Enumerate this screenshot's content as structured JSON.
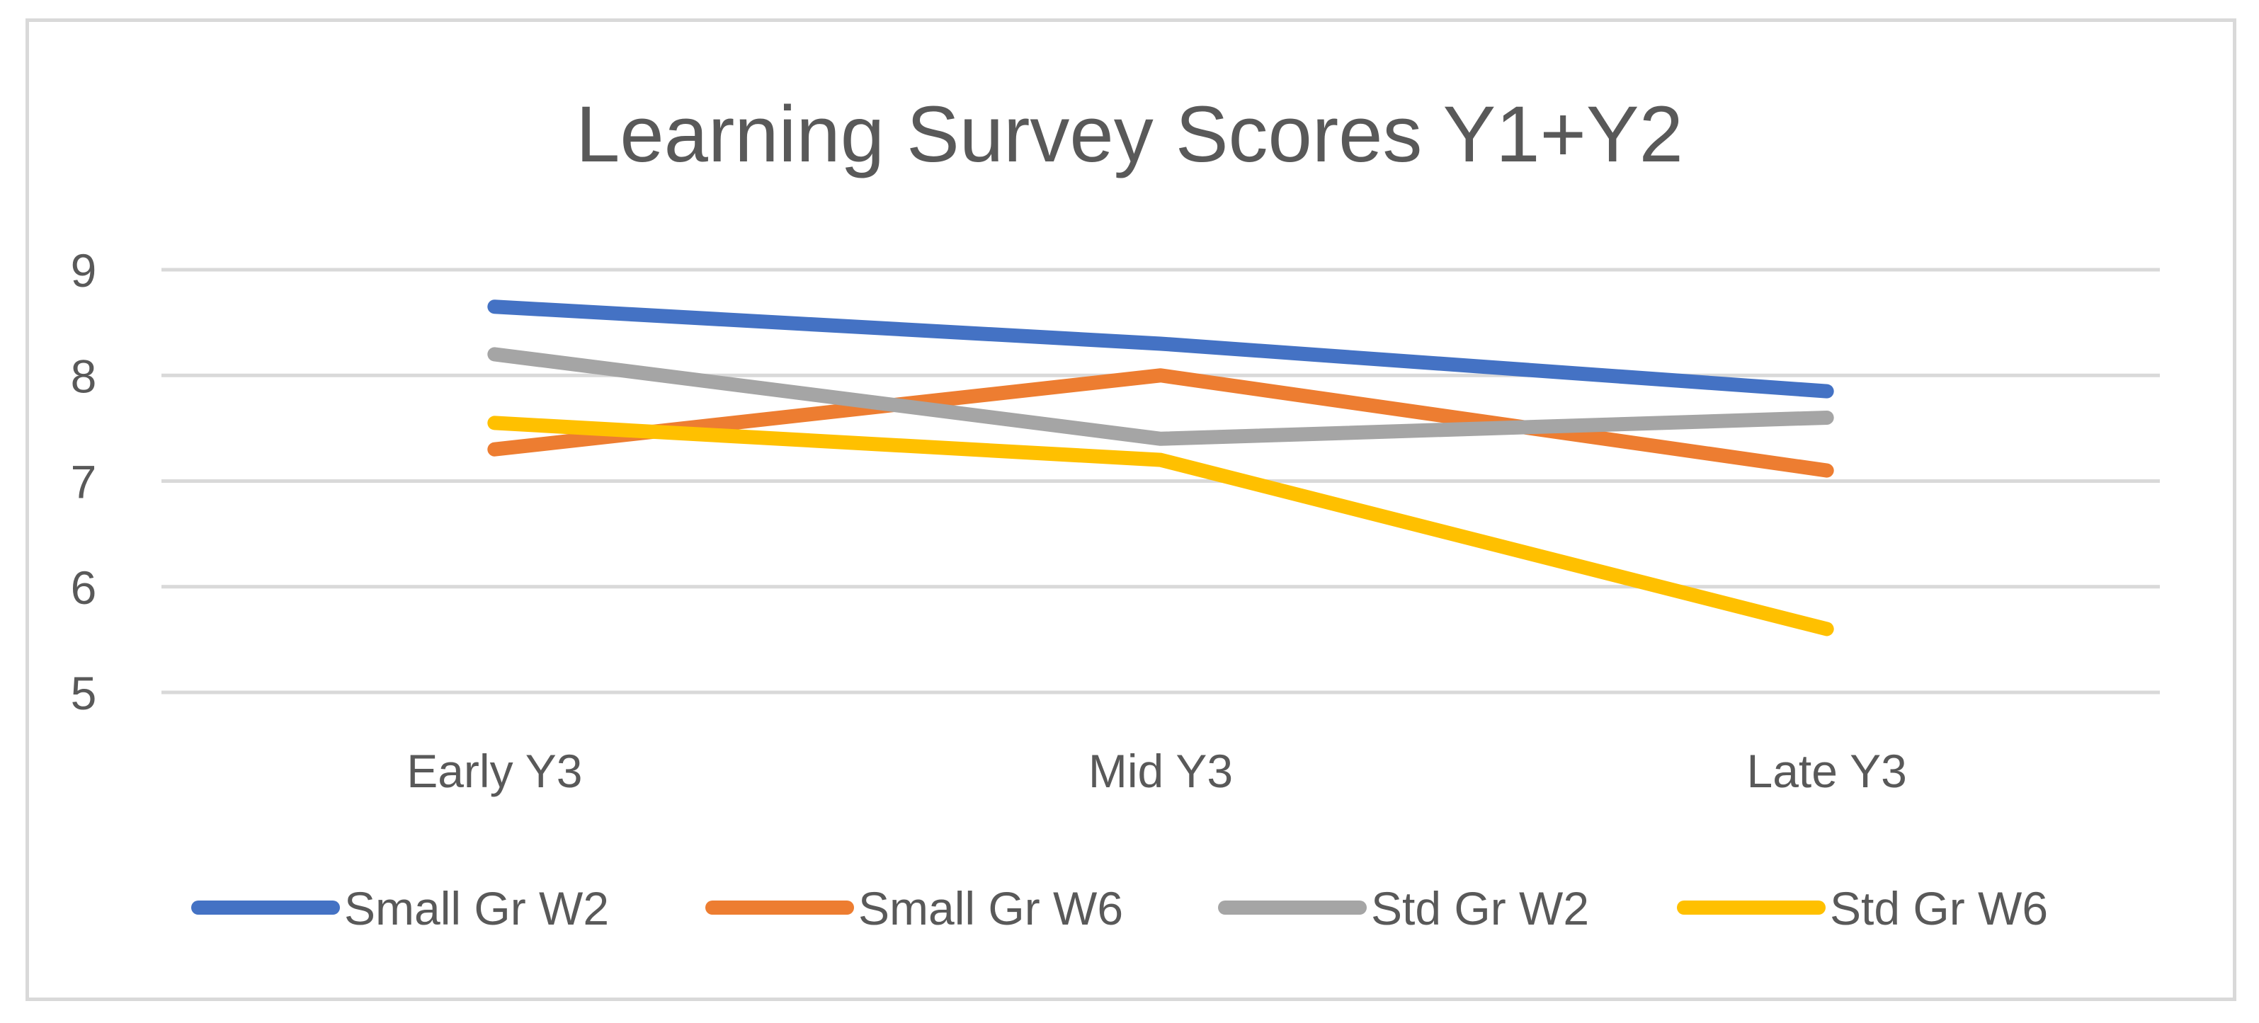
{
  "chart_data": {
    "type": "line",
    "title": "Learning Survey Scores Y1+Y2",
    "xlabel": "",
    "ylabel": "",
    "ylim": [
      5,
      9
    ],
    "yticks": [
      5,
      6,
      7,
      8,
      9
    ],
    "grid": true,
    "legend": "bottom",
    "categories": [
      "Early Y3",
      "Mid Y3",
      "Late Y3"
    ],
    "series": [
      {
        "name": "Small Gr W2",
        "color": "#4472C4",
        "values": [
          8.65,
          8.3,
          7.85
        ]
      },
      {
        "name": "Small Gr W6",
        "color": "#ED7D31",
        "values": [
          7.3,
          8.0,
          7.1
        ]
      },
      {
        "name": "Std Gr W2",
        "color": "#A5A5A5",
        "values": [
          8.2,
          7.4,
          7.6
        ]
      },
      {
        "name": "Std Gr W6",
        "color": "#FFC000",
        "values": [
          7.55,
          7.2,
          5.6
        ]
      }
    ]
  }
}
